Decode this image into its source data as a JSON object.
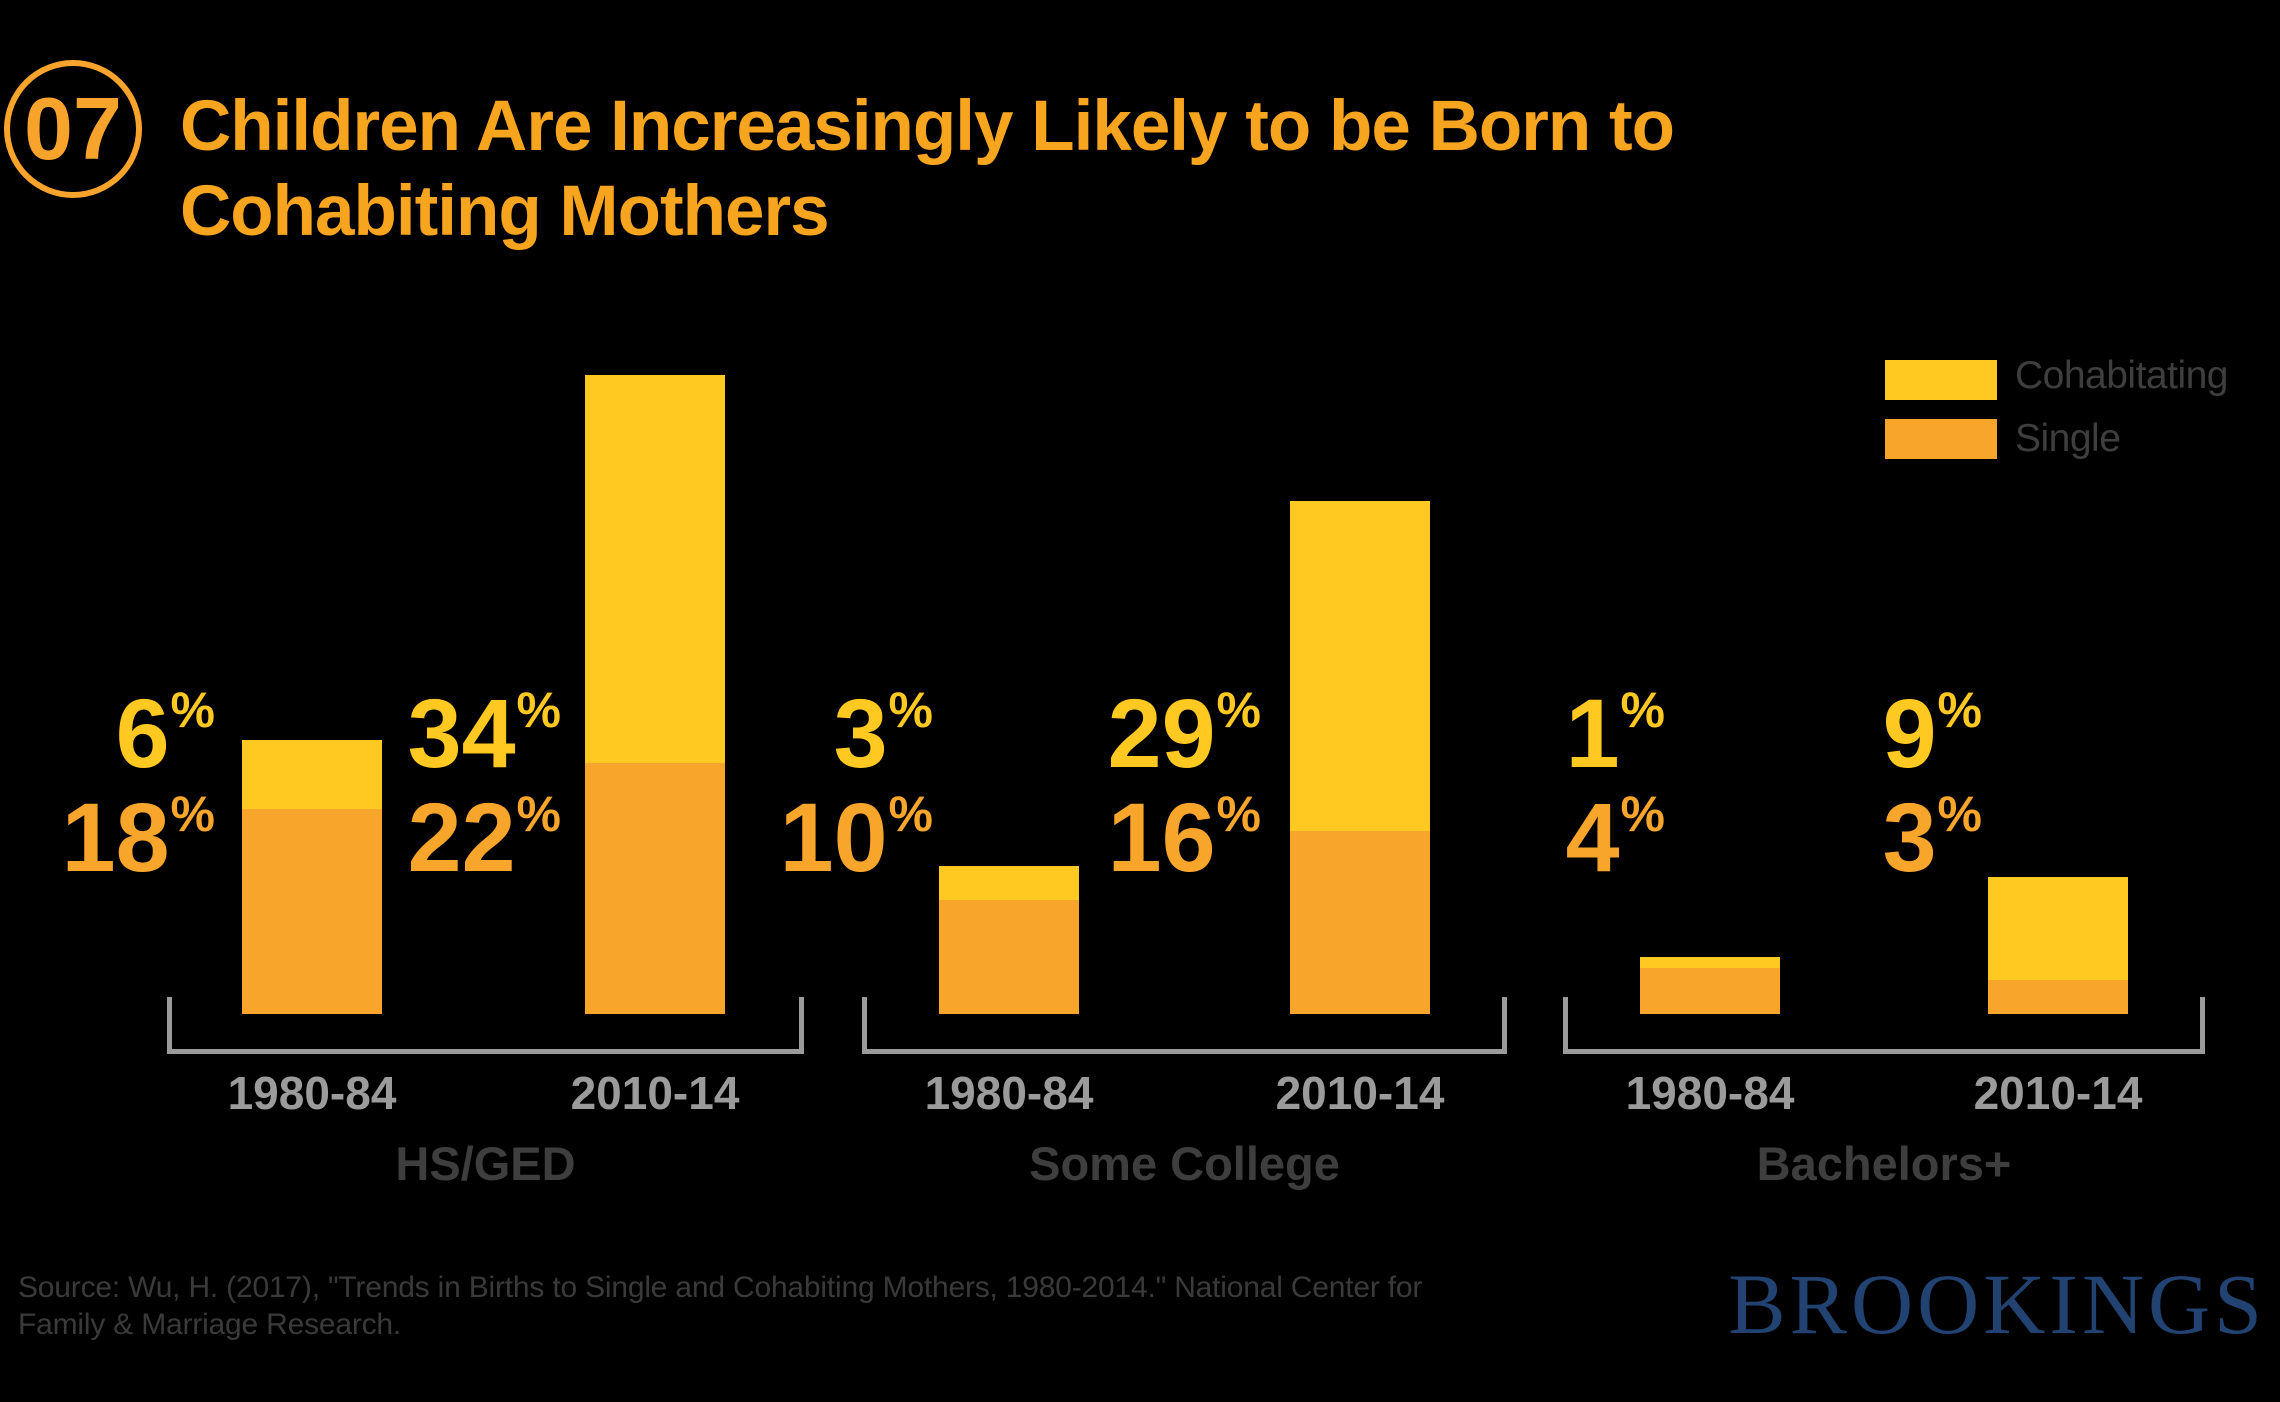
{
  "badge": {
    "number": "07"
  },
  "title": {
    "line1": "Children Are Increasingly Likely to be Born to",
    "line2": "Cohabiting Mothers"
  },
  "legend": {
    "items": [
      {
        "label": "Cohabitating",
        "color_key": "cohabitating"
      },
      {
        "label": "Single",
        "color_key": "single"
      }
    ]
  },
  "colors": {
    "background": "#000000",
    "cohabitating": "#FFC922",
    "single": "#F8A52B",
    "title": "#F7A41F",
    "axis_line": "#9B9B9B",
    "year_label": "#9B9B9B",
    "group_label": "#3E3E3E",
    "legend_label": "#3E3E3E",
    "source_text": "#3A3A3A",
    "brand": "#224272"
  },
  "chart_data": {
    "type": "bar",
    "stacked": true,
    "unit": "percent",
    "legend_position": "top-right",
    "series": [
      {
        "name": "Cohabitating"
      },
      {
        "name": "Single"
      }
    ],
    "groups": [
      {
        "label": "HS/GED",
        "bars": [
          {
            "category": "1980-84",
            "cohabitating_pct": 6,
            "single_pct": 18
          },
          {
            "category": "2010-14",
            "cohabitating_pct": 34,
            "single_pct": 22
          }
        ]
      },
      {
        "label": "Some College",
        "bars": [
          {
            "category": "1980-84",
            "cohabitating_pct": 3,
            "single_pct": 10
          },
          {
            "category": "2010-14",
            "cohabitating_pct": 29,
            "single_pct": 16
          }
        ]
      },
      {
        "label": "Bachelors+",
        "bars": [
          {
            "category": "1980-84",
            "cohabitating_pct": 1,
            "single_pct": 4
          },
          {
            "category": "2010-14",
            "cohabitating_pct": 9,
            "single_pct": 3
          }
        ]
      }
    ]
  },
  "source": {
    "line1": "Source: Wu, H. (2017), \"Trends in Births to Single and Cohabiting Mothers, 1980-2014.\" National Center for",
    "line2": "Family & Marriage Research."
  },
  "brand": {
    "name": "BROOKINGS"
  }
}
